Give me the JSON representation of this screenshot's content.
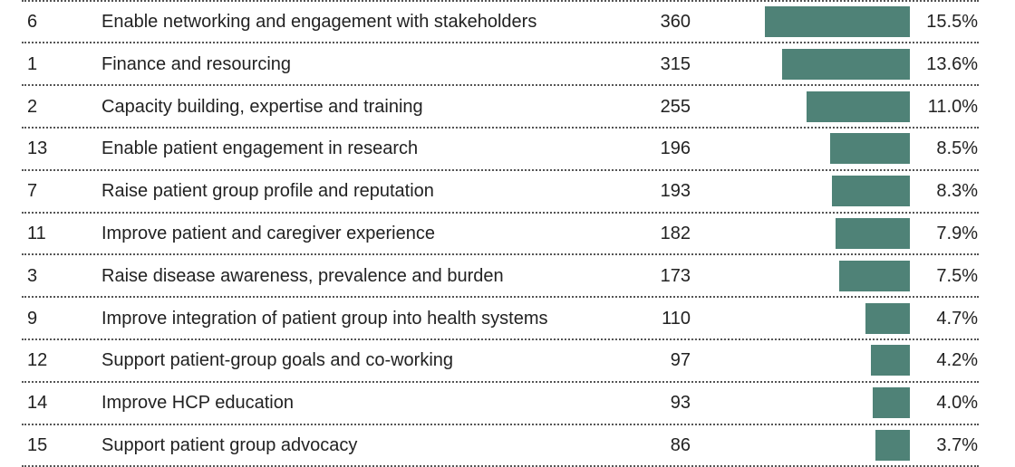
{
  "chart_data": {
    "type": "bar",
    "orientation": "horizontal",
    "grid": false,
    "bar_color": "#4f8277",
    "columns": [
      "",
      "",
      "",
      ""
    ],
    "rows": [
      {
        "id": "6",
        "label": "Enable networking and engagement with stakeholders",
        "count": "360",
        "pct_label": "15.5%",
        "value": 15.5
      },
      {
        "id": "1",
        "label": "Finance and resourcing",
        "count": "315",
        "pct_label": "13.6%",
        "value": 13.6
      },
      {
        "id": "2",
        "label": "Capacity building, expertise and training",
        "count": "255",
        "pct_label": "11.0%",
        "value": 11.0
      },
      {
        "id": "13",
        "label": "Enable patient engagement in research",
        "count": "196",
        "pct_label": "8.5%",
        "value": 8.5
      },
      {
        "id": "7",
        "label": "Raise patient group profile and reputation",
        "count": "193",
        "pct_label": "8.3%",
        "value": 8.3
      },
      {
        "id": "11",
        "label": "Improve patient and caregiver experience",
        "count": "182",
        "pct_label": "7.9%",
        "value": 7.9
      },
      {
        "id": "3",
        "label": "Raise disease awareness, prevalence and burden",
        "count": "173",
        "pct_label": "7.5%",
        "value": 7.5
      },
      {
        "id": "9",
        "label": "Improve integration of patient group into health systems",
        "count": "110",
        "pct_label": "4.7%",
        "value": 4.7
      },
      {
        "id": "12",
        "label": "Support patient-group goals and co-working",
        "count": "97",
        "pct_label": "4.2%",
        "value": 4.2
      },
      {
        "id": "14",
        "label": "Improve HCP education",
        "count": "93",
        "pct_label": "4.0%",
        "value": 4.0
      },
      {
        "id": "15",
        "label": "Support patient group advocacy",
        "count": "86",
        "pct_label": "3.7%",
        "value": 3.7
      }
    ]
  }
}
